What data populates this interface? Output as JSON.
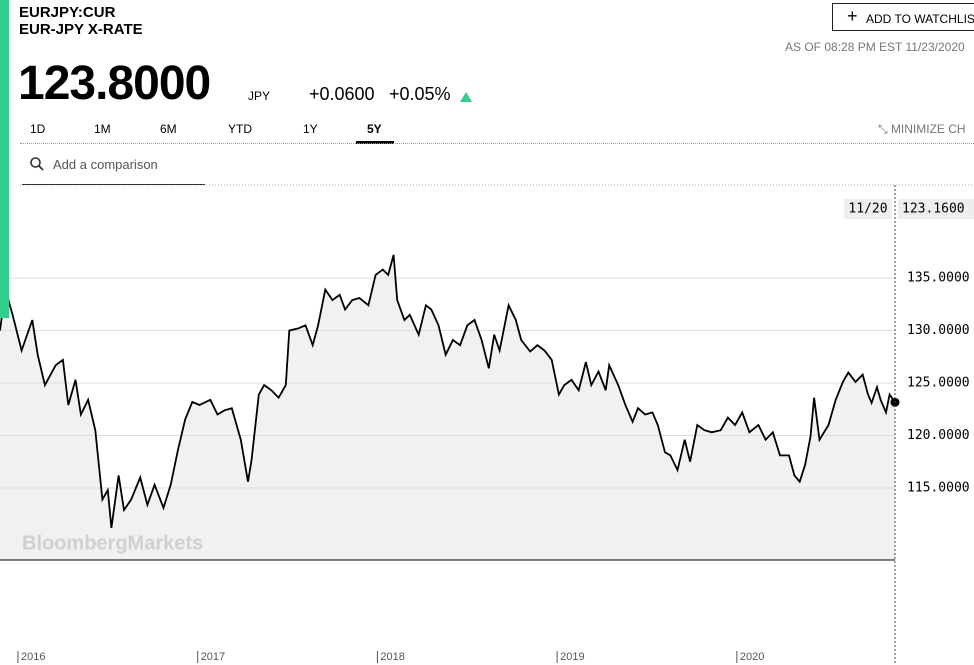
{
  "header": {
    "ticker": "EURJPY:CUR",
    "name": "EUR-JPY X-RATE",
    "price": "123.8000",
    "currency": "JPY",
    "change": "+0.0600",
    "change_pct": "+0.05%",
    "watchlist_button": "ADD TO WATCHLIS",
    "as_of": "AS OF 08:28 PM EST 11/23/2020"
  },
  "toolbar": {
    "ranges": [
      "1D",
      "1M",
      "6M",
      "YTD",
      "1Y",
      "5Y"
    ],
    "active_range_index": 5,
    "minimize": "MINIMIZE CH",
    "comparison_placeholder": "Add a comparison"
  },
  "chart_data": {
    "type": "line",
    "watermark": "BloombergMarkets",
    "color": "#000000",
    "fill_color": "#f1f1f1",
    "grid": true,
    "crosshair": {
      "date": "11/20",
      "price": "123.1600"
    },
    "xlim": [
      2015.9,
      2020.88
    ],
    "xticks": [
      2016,
      2017,
      2018,
      2019,
      2020
    ],
    "ylim": [
      108.14,
      143.86
    ],
    "yticks": [
      {
        "value": 115,
        "label": "115.0000"
      },
      {
        "value": 120,
        "label": "120.0000"
      },
      {
        "value": 125,
        "label": "125.0000"
      },
      {
        "value": 130,
        "label": "130.0000"
      },
      {
        "value": 135,
        "label": "135.0000"
      }
    ],
    "x": [
      2015.9,
      2015.93,
      2015.97,
      2016.02,
      2016.08,
      2016.11,
      2016.15,
      2016.21,
      2016.25,
      2016.28,
      2016.32,
      2016.35,
      2016.39,
      2016.43,
      2016.47,
      2016.5,
      2016.52,
      2016.56,
      2016.59,
      2016.63,
      2016.68,
      2016.72,
      2016.76,
      2016.81,
      2016.85,
      2016.89,
      2016.93,
      2016.97,
      2017.01,
      2017.07,
      2017.11,
      2017.15,
      2017.19,
      2017.24,
      2017.28,
      2017.3,
      2017.34,
      2017.37,
      2017.41,
      2017.45,
      2017.49,
      2017.51,
      2017.56,
      2017.6,
      2017.64,
      2017.67,
      2017.71,
      2017.75,
      2017.79,
      2017.82,
      2017.86,
      2017.9,
      2017.95,
      2017.99,
      2018.03,
      2018.06,
      2018.09,
      2018.11,
      2018.15,
      2018.18,
      2018.23,
      2018.27,
      2018.3,
      2018.34,
      2018.38,
      2018.42,
      2018.46,
      2018.5,
      2018.54,
      2018.58,
      2018.62,
      2018.65,
      2018.68,
      2018.73,
      2018.77,
      2018.8,
      2018.85,
      2018.89,
      2018.93,
      2018.97,
      2019.01,
      2019.04,
      2019.08,
      2019.12,
      2019.16,
      2019.19,
      2019.23,
      2019.27,
      2019.29,
      2019.34,
      2019.38,
      2019.42,
      2019.45,
      2019.49,
      2019.53,
      2019.56,
      2019.6,
      2019.63,
      2019.67,
      2019.71,
      2019.74,
      2019.78,
      2019.82,
      2019.86,
      2019.91,
      2019.95,
      2019.99,
      2020.03,
      2020.07,
      2020.12,
      2020.16,
      2020.2,
      2020.24,
      2020.29,
      2020.32,
      2020.35,
      2020.38,
      2020.41,
      2020.43,
      2020.46,
      2020.51,
      2020.55,
      2020.59,
      2020.62,
      2020.66,
      2020.7,
      2020.73,
      2020.75,
      2020.78,
      2020.8,
      2020.83,
      2020.85,
      2020.88
    ],
    "values": [
      130.0,
      133.9,
      131.5,
      128.1,
      131.0,
      127.7,
      124.8,
      126.7,
      127.2,
      122.9,
      125.3,
      122.0,
      123.4,
      120.5,
      113.9,
      114.8,
      111.2,
      116.2,
      112.9,
      113.9,
      116.0,
      113.4,
      115.3,
      113.1,
      115.3,
      118.6,
      121.5,
      123.2,
      122.9,
      123.4,
      122.0,
      122.4,
      122.6,
      119.6,
      115.6,
      117.7,
      123.9,
      124.8,
      124.3,
      123.6,
      124.8,
      130.0,
      130.2,
      130.5,
      128.6,
      130.5,
      133.9,
      132.9,
      133.4,
      132.0,
      132.9,
      133.1,
      132.4,
      135.3,
      135.8,
      135.3,
      137.2,
      132.9,
      131.0,
      131.5,
      129.6,
      132.4,
      132.0,
      130.5,
      127.7,
      129.1,
      128.6,
      130.5,
      131.0,
      129.1,
      126.4,
      129.6,
      128.1,
      132.4,
      131.0,
      129.1,
      128.0,
      128.6,
      128.1,
      127.2,
      123.9,
      124.8,
      125.3,
      124.3,
      127.0,
      124.8,
      126.1,
      124.3,
      126.7,
      124.8,
      122.9,
      121.3,
      122.6,
      122.0,
      122.2,
      121.0,
      118.4,
      118.1,
      116.7,
      119.6,
      117.5,
      121.0,
      120.5,
      120.3,
      120.5,
      121.7,
      121.0,
      122.2,
      120.3,
      121.0,
      119.6,
      120.3,
      118.1,
      118.1,
      116.2,
      115.6,
      117.2,
      119.9,
      123.6,
      119.6,
      121.0,
      123.4,
      125.1,
      126.0,
      125.1,
      125.8,
      123.9,
      123.1,
      124.6,
      123.4,
      122.2,
      123.9,
      123.16
    ]
  }
}
